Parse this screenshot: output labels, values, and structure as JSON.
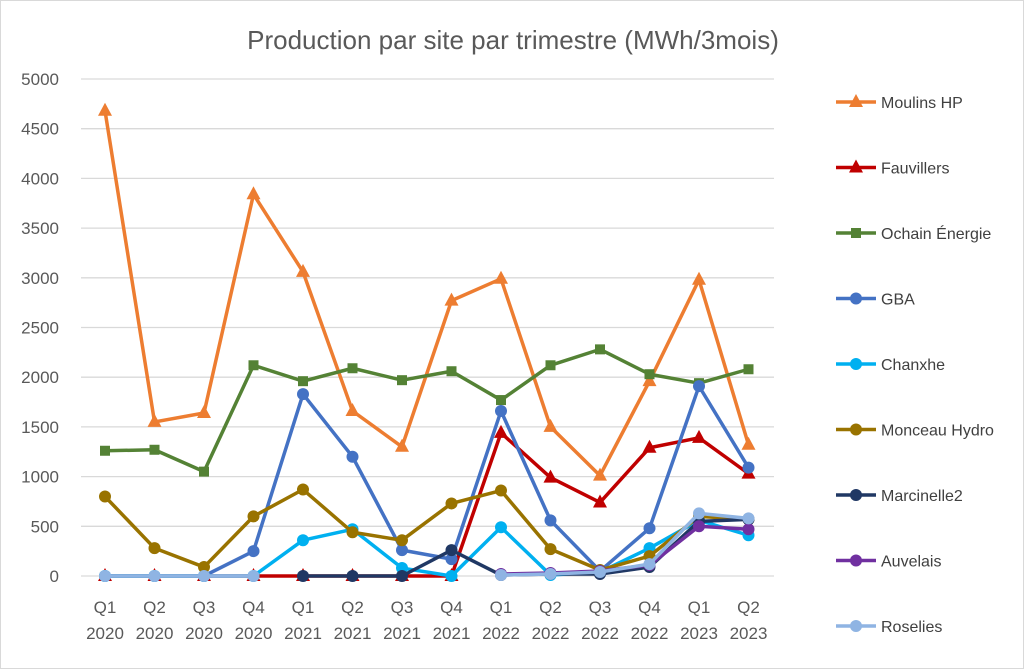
{
  "chart_data": {
    "type": "line",
    "title": "Production par site par trimestre (MWh/3mois)",
    "xlabel": "",
    "ylabel": "",
    "ylim": [
      0,
      5000
    ],
    "yticks": [
      "0",
      "500",
      "1000",
      "1500",
      "2000",
      "2500",
      "3000",
      "3500",
      "4000",
      "4500",
      "5000"
    ],
    "categories": [
      [
        "Q1",
        "2020"
      ],
      [
        "Q2",
        "2020"
      ],
      [
        "Q3",
        "2020"
      ],
      [
        "Q4",
        "2020"
      ],
      [
        "Q1",
        "2021"
      ],
      [
        "Q2",
        "2021"
      ],
      [
        "Q3",
        "2021"
      ],
      [
        "Q4",
        "2021"
      ],
      [
        "Q1",
        "2022"
      ],
      [
        "Q2",
        "2022"
      ],
      [
        "Q3",
        "2022"
      ],
      [
        "Q4",
        "2022"
      ],
      [
        "Q1",
        "2023"
      ],
      [
        "Q2",
        "2023"
      ]
    ],
    "legend": "right",
    "grid": true,
    "series": [
      {
        "name": "Moulins HP",
        "color": "#ED7D31",
        "marker": "triangle",
        "values": [
          4680,
          1550,
          1640,
          3840,
          3060,
          1660,
          1300,
          2770,
          2990,
          1500,
          1010,
          1960,
          2980,
          1320
        ]
      },
      {
        "name": "Fauvillers",
        "color": "#C00000",
        "marker": "triangle",
        "values": [
          0,
          0,
          0,
          0,
          0,
          0,
          0,
          0,
          1440,
          990,
          740,
          1290,
          1390,
          1030
        ]
      },
      {
        "name": "Ochain Énergie",
        "color": "#548235",
        "marker": "square",
        "values": [
          1260,
          1270,
          1050,
          2120,
          1960,
          2090,
          1970,
          2060,
          1770,
          2120,
          2280,
          2030,
          1940,
          2080
        ]
      },
      {
        "name": "GBA",
        "color": "#4472C4",
        "marker": "circle",
        "values": [
          0,
          0,
          0,
          250,
          1830,
          1200,
          260,
          170,
          1660,
          560,
          50,
          480,
          1910,
          1090
        ]
      },
      {
        "name": "Chanxhe",
        "color": "#00B0F0",
        "marker": "circle",
        "values": [
          0,
          0,
          0,
          0,
          360,
          470,
          80,
          0,
          490,
          10,
          40,
          280,
          560,
          410
        ]
      },
      {
        "name": "Monceau Hydro",
        "color": "#997300",
        "marker": "circle",
        "values": [
          800,
          280,
          90,
          600,
          870,
          440,
          360,
          730,
          860,
          270,
          60,
          200,
          600,
          570
        ]
      },
      {
        "name": "Marcinelle2",
        "color": "#203864",
        "marker": "circle",
        "values": [
          null,
          null,
          null,
          null,
          0,
          0,
          0,
          260,
          10,
          20,
          20,
          90,
          550,
          570
        ]
      },
      {
        "name": "Auvelais",
        "color": "#7030A0",
        "marker": "circle",
        "values": [
          null,
          null,
          null,
          null,
          null,
          null,
          null,
          null,
          20,
          30,
          50,
          110,
          500,
          470
        ]
      },
      {
        "name": "Roselies",
        "color": "#8FB4E3",
        "marker": "circle",
        "values": [
          0,
          0,
          0,
          0,
          null,
          null,
          null,
          null,
          10,
          20,
          40,
          120,
          630,
          580
        ]
      }
    ]
  }
}
